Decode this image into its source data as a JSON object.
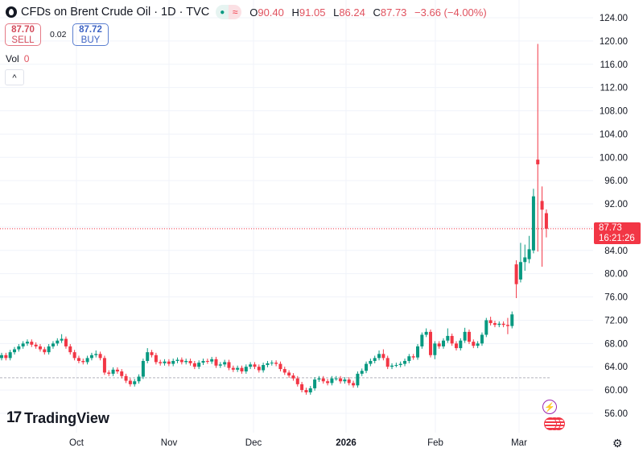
{
  "header": {
    "symbol_title": "CFDs on Brent Crude Oil · 1D · TVC",
    "status_dot_icon": "market-open-dot-icon",
    "wave_icon_glyph": "≈",
    "ohlc": {
      "o_label": "O",
      "o": "90.40",
      "h_label": "H",
      "h": "91.05",
      "l_label": "L",
      "l": "86.24",
      "c_label": "C",
      "c": "87.73",
      "change": "−3.66 (−4.00%)"
    }
  },
  "trade": {
    "sell_price": "87.70",
    "sell_label": "SELL",
    "spread": "0.02",
    "buy_price": "87.72",
    "buy_label": "BUY"
  },
  "volume": {
    "label": "Vol",
    "value": "0"
  },
  "collapse_glyph": "^",
  "brand": {
    "mark": "17",
    "name": "TradingView"
  },
  "last_price": {
    "value": "87.73",
    "countdown": "16:21:26"
  },
  "colors": {
    "up": "#089981",
    "down": "#f23645",
    "grid": "#f0f3fa",
    "dotted_ref": "#b2b5be"
  },
  "icons": [
    "lightning-icon",
    "us-flag-icon",
    "settings-gear-icon"
  ],
  "chart_data": {
    "type": "candlestick",
    "interval": "1D",
    "ylim": [
      54,
      125
    ],
    "y_ticks": [
      "56.00",
      "60.00",
      "64.00",
      "68.00",
      "72.00",
      "76.00",
      "80.00",
      "84.00",
      "88.00",
      "92.00",
      "96.00",
      "100.00",
      "104.00",
      "108.00",
      "112.00",
      "116.00",
      "120.00",
      "124.00"
    ],
    "x_ticks": [
      "Oct",
      "Nov",
      "Dec",
      "2026",
      "Feb",
      "Mar"
    ],
    "reference_line": 62.1,
    "grid": true,
    "candles_ohlc": [
      [
        65.5,
        66.4,
        65.1,
        66
      ],
      [
        66,
        66.4,
        65.1,
        65.5
      ],
      [
        65.5,
        66.9,
        65.1,
        66.5
      ],
      [
        66.5,
        67.4,
        66.1,
        67
      ],
      [
        67,
        67.9,
        66.6,
        67.5
      ],
      [
        67.5,
        68.4,
        67.1,
        68
      ],
      [
        68,
        68.7,
        67.6,
        68.3
      ],
      [
        68.3,
        68.7,
        67.4,
        67.8
      ],
      [
        67.8,
        68.2,
        67.1,
        67.5
      ],
      [
        67.5,
        67.9,
        66.6,
        67
      ],
      [
        67,
        67.4,
        66.1,
        66.5
      ],
      [
        66.5,
        67.9,
        66.1,
        67.5
      ],
      [
        67.5,
        68.4,
        67.1,
        68
      ],
      [
        68,
        68.9,
        67.6,
        68.5
      ],
      [
        68.5,
        69.6,
        68.1,
        68.8
      ],
      [
        68.8,
        69.2,
        67.1,
        67.5
      ],
      [
        67.5,
        67.9,
        66.1,
        66.5
      ],
      [
        66.5,
        66.9,
        65.1,
        65.5
      ],
      [
        65.5,
        65.9,
        64.6,
        65
      ],
      [
        65,
        65.4,
        64.4,
        64.8
      ],
      [
        64.8,
        65.9,
        64.4,
        65.5
      ],
      [
        65.5,
        66.4,
        65.1,
        66
      ],
      [
        66,
        66.8,
        65.6,
        66.2
      ],
      [
        66.2,
        66.6,
        65.1,
        65.5
      ],
      [
        65.5,
        65.9,
        62.6,
        63
      ],
      [
        63,
        63.4,
        62.4,
        62.8
      ],
      [
        62.8,
        63.9,
        62.4,
        63.5
      ],
      [
        63.5,
        63.9,
        62.8,
        63.2
      ],
      [
        63.2,
        63.6,
        62,
        62.4
      ],
      [
        62.4,
        62.8,
        61.2,
        61.6
      ],
      [
        61.6,
        62,
        60.6,
        61
      ],
      [
        61,
        61.9,
        60.6,
        61.5
      ],
      [
        61.5,
        62.7,
        61.1,
        62.3
      ],
      [
        62.3,
        65.4,
        61.9,
        65
      ],
      [
        65,
        67.2,
        64.6,
        66.5
      ],
      [
        66.5,
        66.9,
        65.6,
        66
      ],
      [
        66,
        66.4,
        64.4,
        64.8
      ],
      [
        64.8,
        65.2,
        64.2,
        64.6
      ],
      [
        64.6,
        65.3,
        64.2,
        64.9
      ],
      [
        64.9,
        65.3,
        64.1,
        64.5
      ],
      [
        64.5,
        65.4,
        64.1,
        65
      ],
      [
        65,
        65.6,
        64.6,
        65.2
      ],
      [
        65.2,
        65.6,
        64.4,
        64.8
      ],
      [
        64.8,
        65.4,
        64.4,
        65
      ],
      [
        65,
        65.4,
        64.2,
        64.6
      ],
      [
        64.6,
        65,
        63.6,
        64
      ],
      [
        64,
        65.1,
        63.6,
        64.7
      ],
      [
        64.7,
        65.4,
        64.3,
        65
      ],
      [
        65,
        65.4,
        64.5,
        64.9
      ],
      [
        64.9,
        65.7,
        64.5,
        65.3
      ],
      [
        65.3,
        65.7,
        63.8,
        64.2
      ],
      [
        64.2,
        64.8,
        63.8,
        64.4
      ],
      [
        64.4,
        65.2,
        64,
        64.8
      ],
      [
        64.8,
        65.2,
        63.4,
        63.8
      ],
      [
        63.8,
        64.2,
        63.1,
        63.5
      ],
      [
        63.5,
        64.2,
        63.1,
        63.8
      ],
      [
        63.8,
        64.2,
        62.8,
        63.2
      ],
      [
        63.2,
        64.4,
        62.8,
        64
      ],
      [
        64,
        64.8,
        63.6,
        64.4
      ],
      [
        64.4,
        64.8,
        63.6,
        64
      ],
      [
        64,
        64.4,
        63,
        63.4
      ],
      [
        63.4,
        64.7,
        63,
        64.3
      ],
      [
        64.3,
        65,
        63.9,
        64.6
      ],
      [
        64.6,
        65.1,
        64.2,
        64.7
      ],
      [
        64.7,
        65.1,
        64.1,
        64.5
      ],
      [
        64.5,
        64.9,
        63.2,
        63.6
      ],
      [
        63.6,
        64,
        62.6,
        63
      ],
      [
        63,
        63.4,
        62.1,
        62.5
      ],
      [
        62.5,
        62.9,
        61.6,
        62
      ],
      [
        62,
        62.4,
        60.6,
        61
      ],
      [
        61,
        61.4,
        59.6,
        60
      ],
      [
        60,
        60.4,
        59.2,
        59.6
      ],
      [
        59.6,
        60.7,
        59.2,
        60.3
      ],
      [
        60.3,
        62.2,
        59.9,
        61.8
      ],
      [
        61.8,
        62.4,
        61.4,
        62
      ],
      [
        62,
        62.4,
        61.1,
        61.5
      ],
      [
        61.5,
        61.9,
        60.8,
        61.2
      ],
      [
        61.2,
        62.4,
        60.8,
        62
      ],
      [
        62,
        62.4,
        61.6,
        62
      ],
      [
        62,
        62.4,
        61.1,
        61.5
      ],
      [
        61.5,
        62.2,
        61.1,
        61.8
      ],
      [
        61.8,
        62.2,
        60.8,
        61.2
      ],
      [
        61.2,
        61.6,
        60.4,
        60.8
      ],
      [
        60.8,
        63.2,
        60.4,
        62.8
      ],
      [
        62.8,
        63.7,
        62.4,
        63.3
      ],
      [
        63.3,
        64.9,
        62.9,
        64.5
      ],
      [
        64.5,
        65.4,
        64.1,
        65
      ],
      [
        65,
        65.9,
        64.6,
        65.5
      ],
      [
        65.5,
        66.8,
        65.1,
        66.2
      ],
      [
        66.2,
        67,
        65.1,
        65.5
      ],
      [
        65.5,
        65.9,
        63.6,
        64
      ],
      [
        64,
        64.6,
        63.6,
        64.2
      ],
      [
        64.2,
        64.7,
        63.9,
        64.3
      ],
      [
        64.3,
        64.9,
        63.9,
        64.5
      ],
      [
        64.5,
        65.4,
        64.1,
        65
      ],
      [
        65,
        66.2,
        64.6,
        65.8
      ],
      [
        65.8,
        66.2,
        65.2,
        65.6
      ],
      [
        65.6,
        67.9,
        65.2,
        67.5
      ],
      [
        67.5,
        69.9,
        67.1,
        69.5
      ],
      [
        69.5,
        70.6,
        69.1,
        70
      ],
      [
        70,
        70.4,
        65.6,
        66
      ],
      [
        66,
        68.4,
        65.3,
        68
      ],
      [
        68,
        68.4,
        67.1,
        67.5
      ],
      [
        67.5,
        68.9,
        67.1,
        68.5
      ],
      [
        68.5,
        70.6,
        68.1,
        69.3
      ],
      [
        69.3,
        69.7,
        67.6,
        68
      ],
      [
        68,
        68.4,
        66.8,
        67.2
      ],
      [
        67.2,
        68.9,
        66.8,
        68.5
      ],
      [
        68.5,
        70.7,
        68.1,
        70
      ],
      [
        70,
        70.4,
        67.9,
        68.3
      ],
      [
        68.3,
        68.7,
        67.2,
        67.6
      ],
      [
        67.6,
        68.4,
        67.2,
        68
      ],
      [
        68,
        69.9,
        67.6,
        69.5
      ],
      [
        69.5,
        72.4,
        69.1,
        72
      ],
      [
        72,
        72.6,
        71.1,
        71.5
      ],
      [
        71.5,
        71.9,
        70.8,
        71.2
      ],
      [
        71.2,
        71.8,
        70.8,
        71.4
      ],
      [
        71.4,
        71.8,
        70.8,
        71.2
      ],
      [
        71.2,
        72.4,
        69.6,
        71
      ],
      [
        71,
        73.5,
        70.6,
        73
      ],
      [
        81.6,
        82.3,
        75.8,
        78.2
      ],
      [
        79,
        85.3,
        78.5,
        82
      ],
      [
        82,
        85,
        80.5,
        82.8
      ],
      [
        82.5,
        86.5,
        81.8,
        84.2
      ],
      [
        84,
        94.6,
        83.5,
        93.3
      ],
      [
        99.6,
        119.5,
        83.8,
        98.8
      ],
      [
        92.5,
        95,
        81.2,
        91
      ],
      [
        90.4,
        91.05,
        86.24,
        87.73
      ]
    ],
    "last_close": 87.73
  }
}
